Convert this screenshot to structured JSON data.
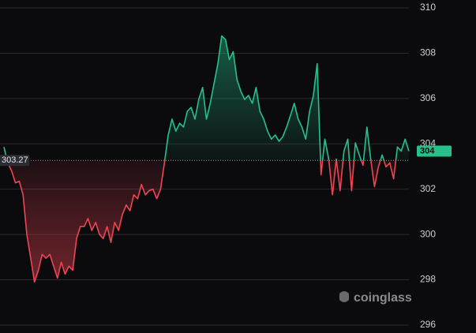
{
  "chart_data": {
    "type": "baseline",
    "baseline": 303.27,
    "last_label": "304",
    "watermark": "coinglass",
    "above_color": "#27c08a",
    "below_color": "#ef4452",
    "grid": true,
    "ylim": [
      295.65,
      310.35
    ],
    "yticks": [
      296,
      298,
      300,
      302,
      304,
      306,
      308,
      310
    ],
    "values": [
      303.86,
      303.16,
      302.81,
      302.28,
      302.35,
      301.75,
      300.0,
      298.95,
      297.9,
      298.42,
      299.12,
      298.95,
      299.12,
      298.6,
      298.07,
      298.77,
      298.25,
      298.6,
      298.42,
      299.82,
      300.35,
      300.35,
      300.7,
      300.18,
      300.53,
      300.0,
      299.82,
      300.35,
      299.65,
      300.53,
      300.18,
      300.88,
      301.3,
      301.05,
      301.75,
      301.58,
      302.21,
      301.75,
      301.93,
      302.0,
      301.58,
      302.0,
      303.16,
      304.39,
      305.09,
      304.56,
      304.91,
      304.74,
      305.44,
      305.61,
      305.09,
      305.96,
      306.49,
      305.09,
      305.79,
      306.67,
      307.54,
      308.77,
      308.6,
      307.72,
      308.07,
      306.84,
      306.32,
      305.96,
      306.14,
      305.79,
      306.49,
      305.44,
      305.09,
      304.56,
      304.21,
      304.39,
      304.11,
      304.32,
      304.74,
      305.26,
      305.79,
      305.09,
      304.74,
      304.21,
      305.44,
      306.14,
      307.54,
      302.63,
      304.21,
      303.33,
      301.75,
      303.33,
      301.93,
      303.68,
      304.21,
      301.93,
      304.04,
      303.51,
      303.05,
      304.74,
      303.33,
      302.11,
      302.98,
      303.51,
      302.98,
      303.16,
      302.46,
      303.86,
      303.68,
      304.21,
      303.68
    ]
  }
}
